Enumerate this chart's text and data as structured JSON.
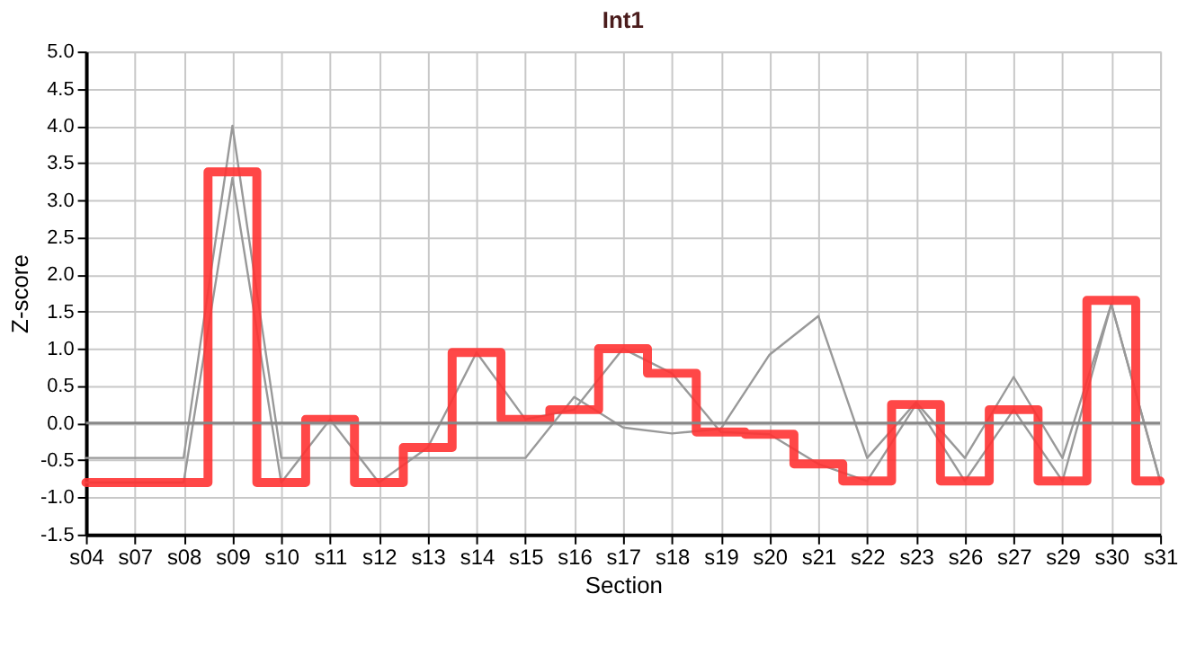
{
  "chart_data": {
    "type": "step",
    "title": "Int1",
    "xlabel": "Section",
    "ylabel": "Z-score",
    "categories": [
      "s04",
      "s07",
      "s08",
      "s09",
      "s10",
      "s11",
      "s12",
      "s13",
      "s14",
      "s15",
      "s16",
      "s17",
      "s18",
      "s19",
      "s20",
      "s21",
      "s22",
      "s23",
      "s26",
      "s27",
      "s29",
      "s30",
      "s31"
    ],
    "series": [
      {
        "type": "line",
        "color": "#999999",
        "values": [
          -0.47,
          -0.47,
          -0.47,
          4.0,
          -0.47,
          -0.47,
          -0.47,
          -0.47,
          -0.47,
          -0.47,
          0.35,
          -0.06,
          -0.14,
          -0.08,
          0.92,
          1.44,
          -0.47,
          0.28,
          -0.47,
          0.62,
          -0.47,
          1.6,
          -0.78
        ]
      },
      {
        "type": "line",
        "color": "#999999",
        "values": [
          -0.8,
          -0.8,
          -0.8,
          3.3,
          -0.8,
          0.05,
          -0.8,
          -0.33,
          0.95,
          0.05,
          0.18,
          1.0,
          0.67,
          -0.12,
          -0.15,
          -0.55,
          -0.78,
          0.25,
          -0.78,
          0.18,
          -0.78,
          1.6,
          -0.78
        ]
      },
      {
        "color": "#ff3333",
        "values": [
          -0.8,
          -0.8,
          -0.8,
          3.38,
          -0.8,
          0.05,
          -0.8,
          -0.33,
          0.95,
          0.05,
          0.18,
          1.0,
          0.67,
          -0.12,
          -0.15,
          -0.55,
          -0.78,
          0.25,
          -0.78,
          0.18,
          -0.78,
          1.65,
          -0.78
        ]
      }
    ],
    "ylim": [
      -1.5,
      5.0
    ],
    "yticks": [
      {
        "value": -1.5,
        "label": "-1.5"
      },
      {
        "value": -1.0,
        "label": "-1.0"
      },
      {
        "value": -0.5,
        "label": "-0.5"
      },
      {
        "value": 0,
        "label": "0.0"
      },
      {
        "value": 0.5,
        "label": "0.5"
      },
      {
        "value": 1.0,
        "label": "1.0"
      },
      {
        "value": 1.5,
        "label": "1.5"
      },
      {
        "value": 2.0,
        "label": "2.0"
      },
      {
        "value": 2.5,
        "label": "2.5"
      },
      {
        "value": 3.0,
        "label": "3.0"
      },
      {
        "value": 3.5,
        "label": "3.5"
      },
      {
        "value": 4.0,
        "label": "4.0"
      },
      {
        "value": 4.5,
        "label": "4.5"
      },
      {
        "value": 5.0,
        "label": "5.0"
      }
    ],
    "ref_lines": [
      {
        "axis": "y",
        "value": 0,
        "color": "#888888"
      }
    ],
    "grid": true,
    "legend": false,
    "marker": "none",
    "line_style": "solid"
  }
}
